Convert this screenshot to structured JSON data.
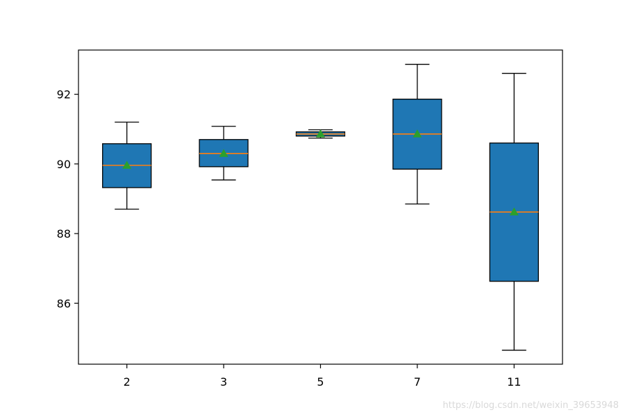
{
  "chart_data": {
    "type": "box",
    "title": "",
    "xlabel": "",
    "ylabel": "",
    "categories": [
      "2",
      "3",
      "5",
      "7",
      "11"
    ],
    "boxes": [
      {
        "label": "2",
        "whisker_low": 88.7,
        "q1": 89.32,
        "median": 89.96,
        "q3": 90.58,
        "whisker_high": 91.2,
        "mean": 89.96
      },
      {
        "label": "3",
        "whisker_low": 89.54,
        "q1": 89.92,
        "median": 90.3,
        "q3": 90.7,
        "whisker_high": 91.08,
        "mean": 90.3
      },
      {
        "label": "5",
        "whisker_low": 90.74,
        "q1": 90.8,
        "median": 90.86,
        "q3": 90.92,
        "whisker_high": 90.98,
        "mean": 90.86
      },
      {
        "label": "7",
        "whisker_low": 88.85,
        "q1": 89.85,
        "median": 90.86,
        "q3": 91.86,
        "whisker_high": 92.86,
        "mean": 90.86
      },
      {
        "label": "11",
        "whisker_low": 84.65,
        "q1": 86.63,
        "median": 88.62,
        "q3": 90.6,
        "whisker_high": 92.6,
        "mean": 88.62
      }
    ],
    "ylim": [
      84.25,
      93.27
    ],
    "yticks": [
      86,
      88,
      90,
      92
    ],
    "grid": false,
    "legend": "none",
    "colors": {
      "box_fill": "#1f77b4",
      "median_line": "#ff7f0e",
      "mean_marker": "#2ca02c",
      "edges": "#000000"
    }
  },
  "watermark": "https://blog.csdn.net/weixin_39653948"
}
